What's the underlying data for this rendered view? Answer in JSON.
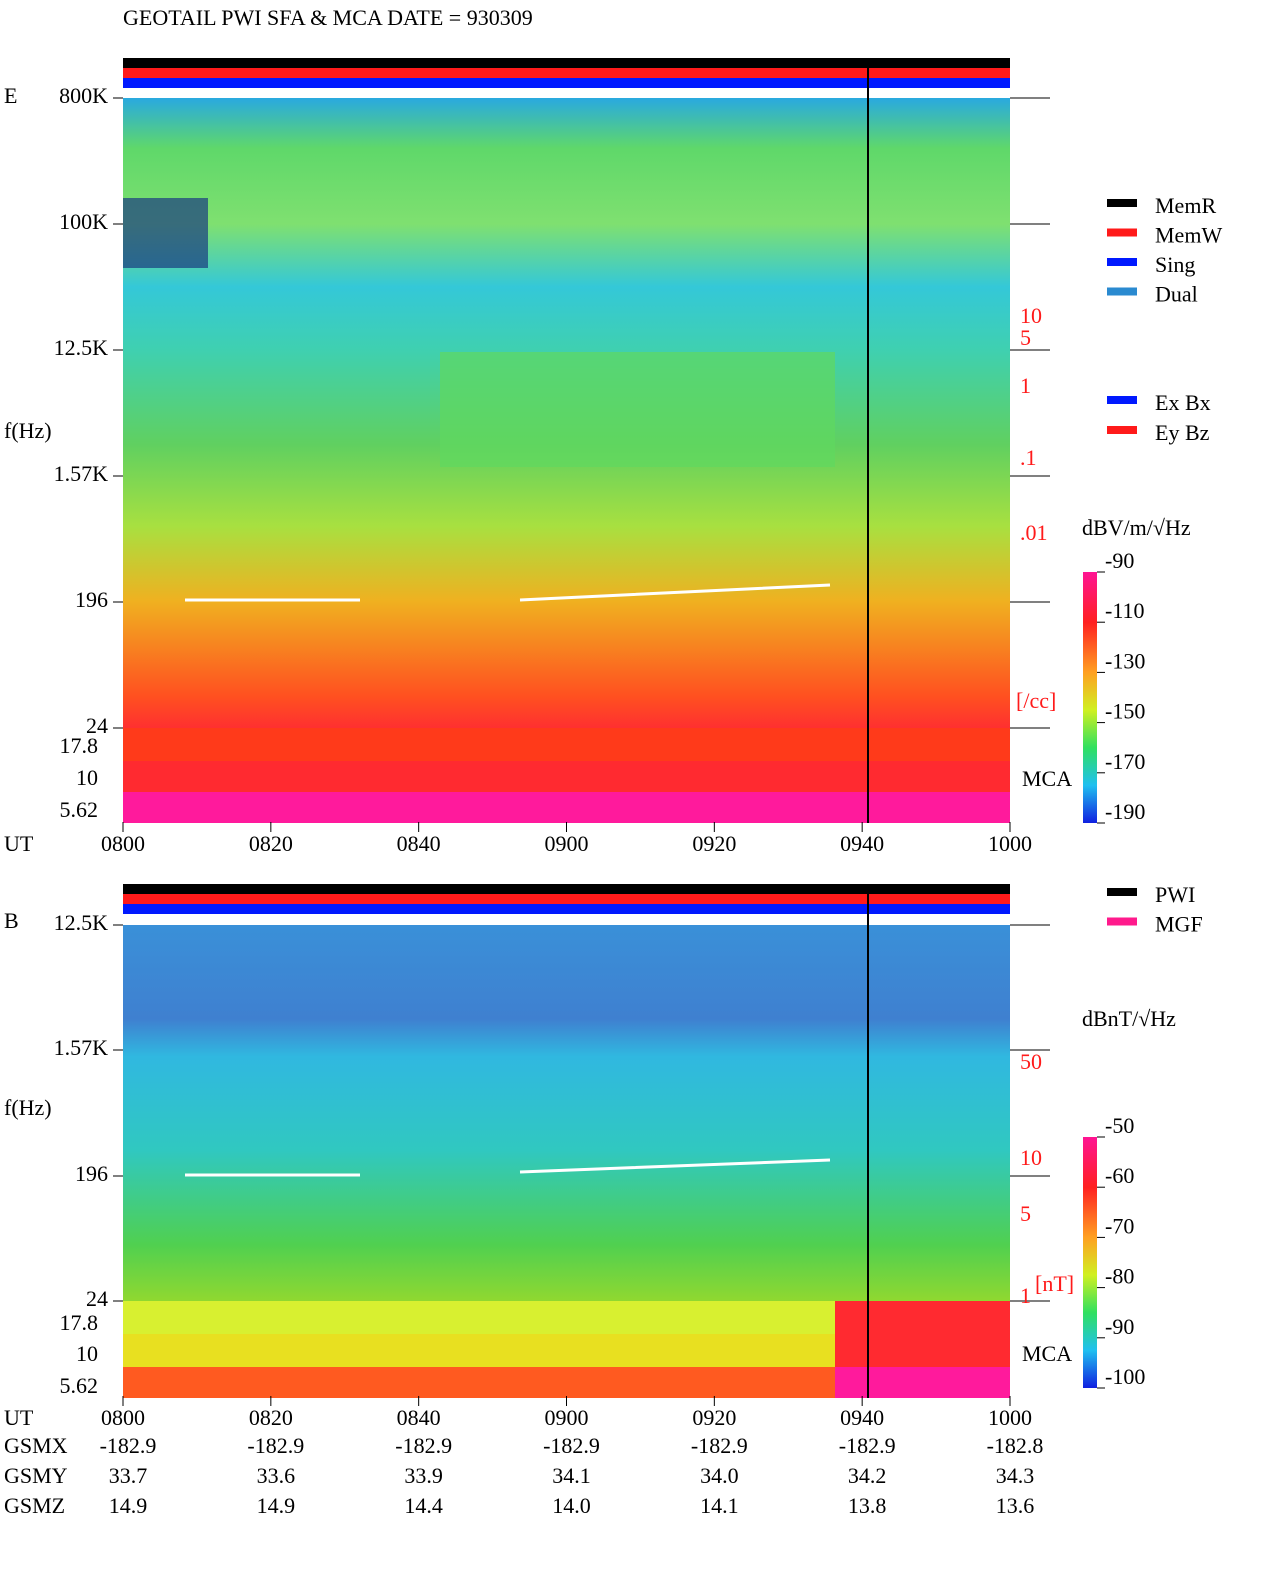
{
  "title": "GEOTAIL   PWI SFA & MCA   DATE = 930309",
  "panel_e": {
    "label": "E",
    "freq_ticks": [
      "800K",
      "100K",
      "12.5K",
      "1.57K",
      "196",
      "24"
    ],
    "mca_ticks": [
      "17.8",
      "10",
      "5.62"
    ],
    "y_label": "f(Hz)",
    "mca_label": "MCA",
    "scale_ticks": [
      "10",
      "5",
      "1",
      ".1",
      ".01"
    ],
    "scale_unit": "[/cc]",
    "colorbar_unit": "dBV/m/√Hz",
    "colorbar_ticks": [
      "-90",
      "-110",
      "-130",
      "-150",
      "-170",
      "-190"
    ],
    "legend": [
      {
        "name": "MemR",
        "color": "#000000"
      },
      {
        "name": "MemW",
        "color": "#ff1a1a"
      },
      {
        "name": "Sing",
        "color": "#0019ff"
      },
      {
        "name": "Dual",
        "color": "#2a8ad0"
      }
    ],
    "legend2": [
      {
        "name": "Ex Bx",
        "color": "#0019ff"
      },
      {
        "name": "Ey Bz",
        "color": "#ff1a1a"
      }
    ]
  },
  "panel_b": {
    "label": "B",
    "freq_ticks": [
      "12.5K",
      "1.57K",
      "196",
      "24"
    ],
    "mca_ticks": [
      "17.8",
      "10",
      "5.62"
    ],
    "y_label": "f(Hz)",
    "mca_label": "MCA",
    "scale_ticks": [
      "50",
      "10",
      "5",
      "1"
    ],
    "scale_unit": "[nT]",
    "colorbar_unit": "dBnT/√Hz",
    "colorbar_ticks": [
      "-50",
      "-60",
      "-70",
      "-80",
      "-90",
      "-100"
    ],
    "legend": [
      {
        "name": "PWI",
        "color": "#000000"
      },
      {
        "name": "MGF",
        "color": "#ff1a8c"
      }
    ]
  },
  "time_label": "UT",
  "time_ticks": [
    "0800",
    "0820",
    "0840",
    "0900",
    "0920",
    "0940",
    "1000"
  ],
  "orbit": [
    {
      "name": "GSMX",
      "values": [
        "-182.9",
        "-182.9",
        "-182.9",
        "-182.9",
        "-182.9",
        "-182.9",
        "-182.8"
      ]
    },
    {
      "name": "GSMY",
      "values": [
        "33.7",
        "33.6",
        "33.9",
        "34.1",
        "34.0",
        "34.2",
        "34.3"
      ]
    },
    {
      "name": "GSMZ",
      "values": [
        "14.9",
        "14.9",
        "14.4",
        "14.0",
        "14.1",
        "13.8",
        "13.6"
      ]
    }
  ]
}
